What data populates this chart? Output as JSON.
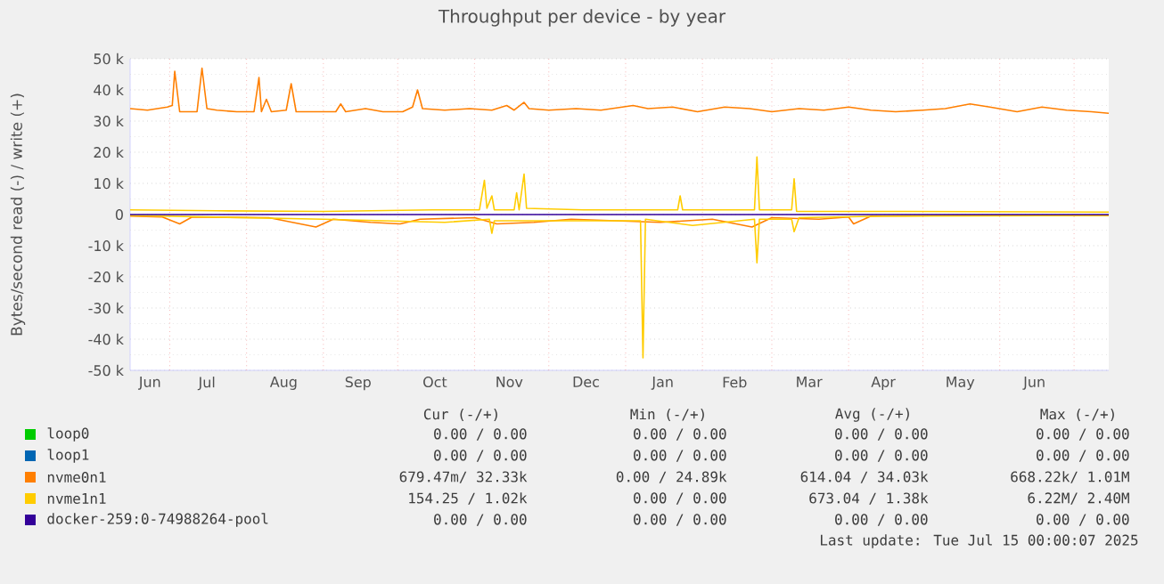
{
  "chart_data": {
    "type": "line",
    "title": "Throughput per device - by year",
    "ylabel": "Bytes/second read (-) / write (+)",
    "xlim": [
      "2024-06-15",
      "2025-07-15"
    ],
    "xticks": [
      {
        "value": "2024-06-23",
        "label": "Jun"
      },
      {
        "value": "2024-07-16",
        "label": "Jul"
      },
      {
        "value": "2024-08-16",
        "label": "Aug"
      },
      {
        "value": "2024-09-15",
        "label": "Sep"
      },
      {
        "value": "2024-10-16",
        "label": "Oct"
      },
      {
        "value": "2024-11-15",
        "label": "Nov"
      },
      {
        "value": "2024-12-16",
        "label": "Dec"
      },
      {
        "value": "2025-01-16",
        "label": "Jan"
      },
      {
        "value": "2025-02-14",
        "label": "Feb"
      },
      {
        "value": "2025-03-16",
        "label": "Mar"
      },
      {
        "value": "2025-04-15",
        "label": "Apr"
      },
      {
        "value": "2025-05-16",
        "label": "May"
      },
      {
        "value": "2025-06-15",
        "label": "Jun"
      },
      {
        "value": "2024-07-01",
        "label": null
      },
      {
        "value": "2024-08-01",
        "label": null
      },
      {
        "value": "2024-09-01",
        "label": null
      },
      {
        "value": "2024-10-01",
        "label": null
      },
      {
        "value": "2024-11-01",
        "label": null
      },
      {
        "value": "2024-12-01",
        "label": null
      },
      {
        "value": "2025-01-01",
        "label": null
      },
      {
        "value": "2025-02-01",
        "label": null
      },
      {
        "value": "2025-03-01",
        "label": null
      },
      {
        "value": "2025-04-01",
        "label": null
      },
      {
        "value": "2025-05-01",
        "label": null
      },
      {
        "value": "2025-06-01",
        "label": null
      },
      {
        "value": "2025-07-01",
        "label": null
      }
    ],
    "ylim": [
      -50000,
      50000
    ],
    "yticks": [
      {
        "value": -50000,
        "label": "-50 k"
      },
      {
        "value": -40000,
        "label": "-40 k"
      },
      {
        "value": -30000,
        "label": "-30 k"
      },
      {
        "value": -20000,
        "label": "-20 k"
      },
      {
        "value": -10000,
        "label": "-10 k"
      },
      0,
      {
        "value": 10000,
        "label": "10 k"
      },
      {
        "value": 20000,
        "label": "20 k"
      },
      {
        "value": 30000,
        "label": "30 k"
      },
      {
        "value": 40000,
        "label": "40 k"
      },
      {
        "value": 50000,
        "label": "50 k"
      },
      {
        "value": -45000,
        "label": null
      },
      {
        "value": -35000,
        "label": null
      },
      {
        "value": -25000,
        "label": null
      },
      {
        "value": -15000,
        "label": null
      },
      {
        "value": -5000,
        "label": null
      },
      {
        "value": 5000,
        "label": null
      },
      {
        "value": 15000,
        "label": null
      },
      {
        "value": 25000,
        "label": null
      },
      {
        "value": 35000,
        "label": null
      },
      {
        "value": 45000,
        "label": null
      }
    ],
    "grid": true,
    "legend": "bottom",
    "series": [
      {
        "name": "loop0",
        "color": "#00cc00"
      },
      {
        "name": "loop1",
        "color": "#0066b3"
      },
      {
        "name": "nvme0n1",
        "color": "#ff7f00",
        "x": [
          "2024-06-15",
          "2024-06-22",
          "2024-06-30",
          "2024-07-02",
          "2024-07-03",
          "2024-07-05",
          "2024-07-12",
          "2024-07-14",
          "2024-07-16",
          "2024-07-20",
          "2024-07-28",
          "2024-08-04",
          "2024-08-06",
          "2024-08-07",
          "2024-08-09",
          "2024-08-11",
          "2024-08-17",
          "2024-08-19",
          "2024-08-21",
          "2024-08-30",
          "2024-09-06",
          "2024-09-08",
          "2024-09-10",
          "2024-09-18",
          "2024-09-25",
          "2024-10-03",
          "2024-10-07",
          "2024-10-09",
          "2024-10-11",
          "2024-10-20",
          "2024-10-30",
          "2024-11-08",
          "2024-11-14",
          "2024-11-17",
          "2024-11-21",
          "2024-11-23",
          "2024-12-01",
          "2024-12-12",
          "2024-12-22",
          "2025-01-04",
          "2025-01-10",
          "2025-01-20",
          "2025-01-30",
          "2025-02-10",
          "2025-02-20",
          "2025-03-01",
          "2025-03-12",
          "2025-03-22",
          "2025-04-01",
          "2025-04-10",
          "2025-04-20",
          "2025-05-01",
          "2025-05-10",
          "2025-05-20",
          "2025-05-28",
          "2025-06-08",
          "2025-06-18",
          "2025-06-28",
          "2025-07-08",
          "2025-07-15"
        ],
        "values": [
          34000,
          33500,
          34500,
          35000,
          46000,
          33000,
          33000,
          47000,
          34000,
          33500,
          33000,
          33000,
          44000,
          33000,
          37000,
          33000,
          33500,
          42000,
          33000,
          33000,
          33000,
          35500,
          33000,
          34000,
          33000,
          33000,
          34500,
          40000,
          34000,
          33500,
          34000,
          33500,
          35000,
          33500,
          36000,
          34000,
          33500,
          34000,
          33500,
          35000,
          34000,
          34500,
          33000,
          34500,
          34000,
          33000,
          34000,
          33500,
          34500,
          33500,
          33000,
          33500,
          34000,
          35500,
          34500,
          33000,
          34500,
          33500,
          33000,
          32500
        ]
      },
      {
        "color": "#ff7f00",
        "x": [
          "2024-06-15",
          "2024-06-28",
          "2024-07-05",
          "2024-07-10",
          "2024-08-10",
          "2024-08-29",
          "2024-09-05",
          "2024-09-20",
          "2024-10-02",
          "2024-10-10",
          "2024-11-01",
          "2024-11-10",
          "2024-11-25",
          "2024-12-10",
          "2024-12-28",
          "2025-01-15",
          "2025-02-05",
          "2025-02-21",
          "2025-03-01",
          "2025-03-20",
          "2025-04-01",
          "2025-04-03",
          "2025-04-10",
          "2025-05-15",
          "2025-07-15"
        ],
        "values": [
          -500,
          -800,
          -3000,
          -800,
          -1000,
          -4000,
          -1500,
          -2500,
          -3000,
          -1500,
          -1000,
          -3000,
          -2500,
          -1500,
          -2000,
          -2500,
          -1500,
          -4000,
          -1000,
          -1500,
          -800,
          -3000,
          -500,
          -300,
          -300
        ]
      },
      {
        "name": "nvme1n1",
        "color": "#ffcc00",
        "x": [
          "2024-06-15",
          "2024-07-20",
          "2024-09-01",
          "2024-10-15",
          "2024-11-03",
          "2024-11-05",
          "2024-11-06",
          "2024-11-08",
          "2024-11-09",
          "2024-11-17",
          "2024-11-18",
          "2024-11-19",
          "2024-11-21",
          "2024-11-22",
          "2024-12-15",
          "2025-01-22",
          "2025-01-23",
          "2025-01-24",
          "2025-02-22",
          "2025-02-23",
          "2025-02-24",
          "2025-03-09",
          "2025-03-10",
          "2025-03-11",
          "2025-04-15",
          "2025-07-15"
        ],
        "values": [
          1500,
          1200,
          1000,
          1500,
          1500,
          11000,
          2000,
          6000,
          1500,
          1500,
          7000,
          1500,
          13000,
          2000,
          1500,
          1500,
          6000,
          1500,
          1500,
          18500,
          1500,
          1500,
          11500,
          1000,
          1000,
          800
        ]
      },
      {
        "color": "#ffcc00",
        "x": [
          "2024-06-15",
          "2024-09-01",
          "2024-10-20",
          "2024-11-07",
          "2024-11-08",
          "2024-11-09",
          "2024-12-15",
          "2025-01-07",
          "2025-01-08",
          "2025-01-09",
          "2025-01-28",
          "2025-02-22",
          "2025-02-23",
          "2025-02-24",
          "2025-03-09",
          "2025-03-10",
          "2025-03-12",
          "2025-04-15",
          "2025-07-15"
        ],
        "values": [
          -300,
          -1500,
          -2500,
          -1500,
          -6000,
          -2000,
          -2000,
          -2000,
          -46000,
          -1500,
          -3500,
          -1500,
          -15500,
          -1500,
          -1500,
          -5500,
          -1000,
          -500,
          -300
        ]
      },
      {
        "name": "docker-259:0-74988264-pool",
        "color": "#330099",
        "x": [
          "2024-06-15",
          "2025-07-15"
        ],
        "values": [
          0,
          0
        ]
      }
    ],
    "annotations": [
      "Cur (-/+)",
      "Min (-/+)",
      "Avg (-/+)",
      "Max (-/+)",
      "0.00 / 0.00",
      "0.00 / 0.00",
      "0.00 / 0.00",
      "0.00 / 0.00",
      "0.00 / 0.00",
      "0.00 / 0.00",
      "0.00 / 0.00",
      "0.00 / 0.00",
      "679.47m/ 32.33k",
      "0.00 / 24.89k",
      "614.04 / 34.03k",
      "668.22k/ 1.01M",
      "154.25 / 1.02k",
      "0.00 / 0.00",
      "673.04 / 1.38k",
      "6.22M/ 2.40M",
      "0.00 / 0.00",
      "0.00 / 0.00",
      "0.00 / 0.00",
      "0.00 / 0.00",
      "Last update: Tue Jul 15 00:00:07 2025"
    ]
  }
}
